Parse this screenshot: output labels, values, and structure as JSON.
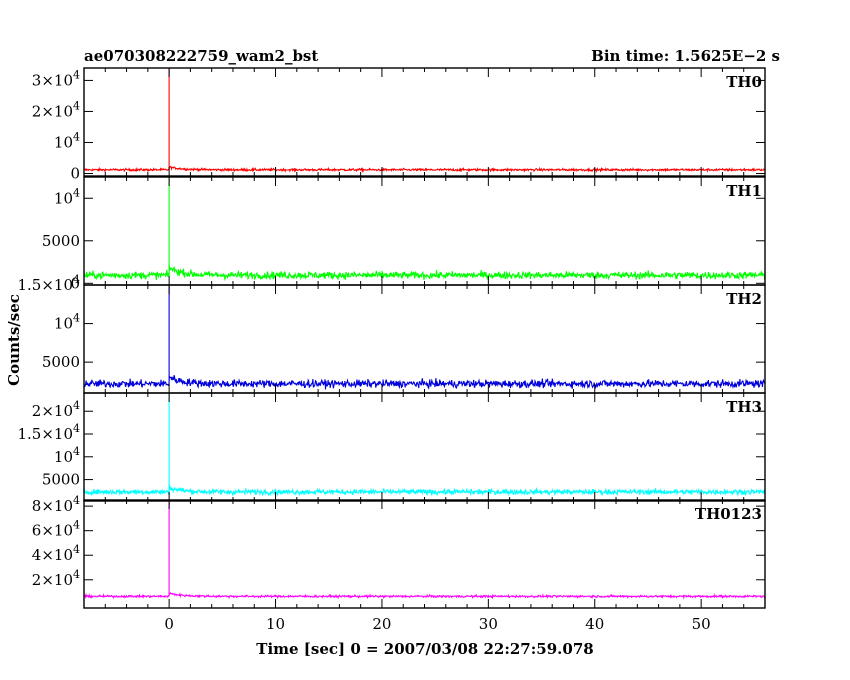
{
  "chart_data": {
    "type": "line",
    "title": "ae070308222759_wam2_bst",
    "bin_time": "Bin time: 1.5625E−2 s",
    "xlabel": "Time [sec] 0 = 2007/03/08 22:27:59.078",
    "ylabel": "Counts/sec",
    "xlim": [
      -8,
      56
    ],
    "xticks": [
      0,
      10,
      20,
      30,
      40,
      50
    ],
    "data_xrange": [
      -8,
      56
    ],
    "grid": false,
    "panels": [
      {
        "name": "TH0",
        "color": "#ff0000",
        "ylim": [
          -800,
          34000
        ],
        "yticks": [
          {
            "value": 0,
            "label": "0"
          },
          {
            "value": 10000,
            "label": "10",
            "exp": "4"
          },
          {
            "value": 20000,
            "label": "2×10",
            "exp": "4"
          },
          {
            "value": 30000,
            "label": "3×10",
            "exp": "4"
          }
        ],
        "baseline": 1200,
        "noise": 250,
        "peak": 34000,
        "tail_peak": 900
      },
      {
        "name": "TH1",
        "color": "#00ff00",
        "ylim": [
          -200,
          12500
        ],
        "yticks": [
          {
            "value": 0,
            "label": "0"
          },
          {
            "value": 5000,
            "label": "5000"
          },
          {
            "value": 10000,
            "label": "10",
            "exp": "4"
          }
        ],
        "baseline": 950,
        "noise": 300,
        "peak": 12500,
        "tail_peak": 900
      },
      {
        "name": "TH2",
        "color": "#0000dd",
        "ylim": [
          1000,
          15000
        ],
        "yticks": [
          {
            "value": 5000,
            "label": "5000"
          },
          {
            "value": 10000,
            "label": "10",
            "exp": "4"
          },
          {
            "value": 15000,
            "label": "1.5×10",
            "exp": "4"
          }
        ],
        "baseline": 2200,
        "noise": 350,
        "peak": 15000,
        "tail_peak": 900
      },
      {
        "name": "TH3",
        "color": "#00ffff",
        "ylim": [
          300,
          24000
        ],
        "yticks": [
          {
            "value": 5000,
            "label": "5000"
          },
          {
            "value": 10000,
            "label": "10",
            "exp": "4"
          },
          {
            "value": 15000,
            "label": "1.5×10",
            "exp": "4"
          },
          {
            "value": 20000,
            "label": "2×10",
            "exp": "4"
          }
        ],
        "baseline": 2300,
        "noise": 400,
        "peak": 24000,
        "tail_peak": 900
      },
      {
        "name": "TH0123",
        "color": "#ff00ff",
        "ylim": [
          -3000,
          85000
        ],
        "yticks": [
          {
            "value": 20000,
            "label": "2×10",
            "exp": "4"
          },
          {
            "value": 40000,
            "label": "4×10",
            "exp": "4"
          },
          {
            "value": 60000,
            "label": "6×10",
            "exp": "4"
          },
          {
            "value": 80000,
            "label": "8×10",
            "exp": "4"
          }
        ],
        "baseline": 6500,
        "noise": 600,
        "peak": 85000,
        "tail_peak": 2500
      }
    ]
  }
}
